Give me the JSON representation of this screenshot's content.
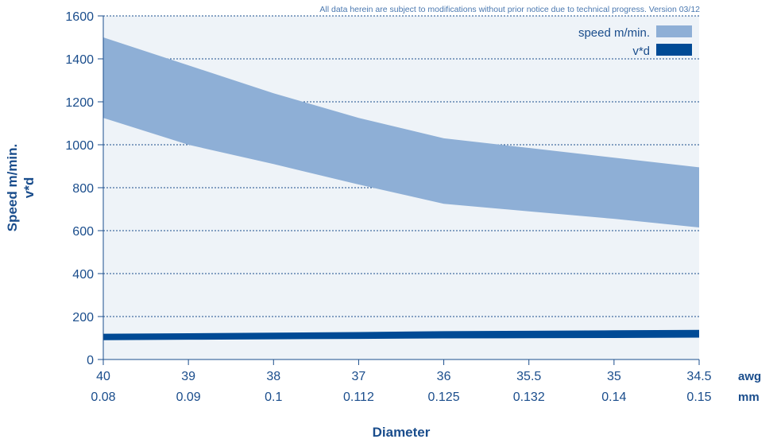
{
  "note": "All data herein are subject to modifications without prior notice due to technical progress. Version 03/12",
  "colors": {
    "band": "#8eafd6",
    "line": "#004a95",
    "plot_bg": "#eef3f8",
    "text": "#1a4d8c",
    "grid": "#1a4d8c"
  },
  "chart_data": {
    "type": "area",
    "xlabel": "Diameter",
    "ylabel": [
      "Speed m/min.",
      "v*d"
    ],
    "x_row1_unit": "awg",
    "x_row2_unit": "mm",
    "x_awg": [
      "40",
      "39",
      "38",
      "37",
      "36",
      "35.5",
      "35",
      "34.5"
    ],
    "x_mm": [
      "0.08",
      "0.09",
      "0.1",
      "0.112",
      "0.125",
      "0.132",
      "0.14",
      "0.15"
    ],
    "y_ticks": [
      "0",
      "200",
      "400",
      "600",
      "800",
      "1000",
      "1200",
      "1400",
      "1600"
    ],
    "ylim": [
      0,
      1600
    ],
    "grid": "horizontal dotted",
    "legend_position": "top-right",
    "series": [
      {
        "name": "speed m/min.",
        "kind": "band",
        "upper": [
          1500,
          1370,
          1240,
          1125,
          1030,
          985,
          940,
          895
        ],
        "lower": [
          1125,
          1000,
          910,
          815,
          725,
          690,
          655,
          615
        ]
      },
      {
        "name": "v*d",
        "kind": "line",
        "upper": [
          120,
          122,
          125,
          128,
          132,
          134,
          136,
          138
        ],
        "lower": [
          90,
          92,
          94,
          96,
          98,
          99,
          100,
          102
        ]
      }
    ]
  }
}
